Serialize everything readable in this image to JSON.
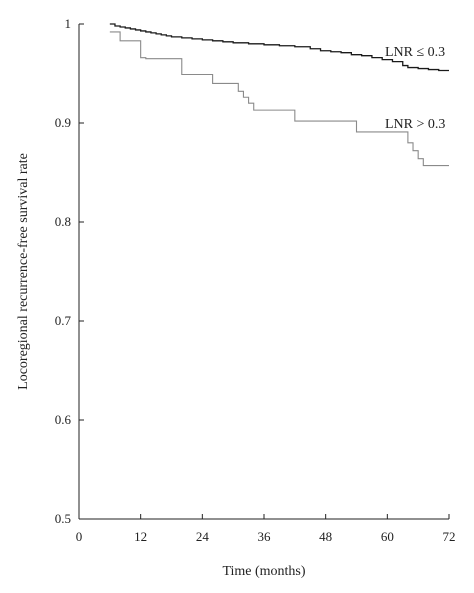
{
  "chart_data": {
    "type": "line",
    "title": "",
    "xlabel": "Time (months)",
    "ylabel": "Locoregional recurrence-free survival rate",
    "xlim": [
      0,
      72
    ],
    "ylim": [
      0.5,
      1.0
    ],
    "x_ticks": [
      0,
      12,
      24,
      36,
      48,
      60,
      72
    ],
    "x_tick_labels": [
      "0",
      "12",
      "24",
      "36",
      "48",
      "60",
      "72"
    ],
    "y_ticks": [
      0.5,
      0.6,
      0.7,
      0.8,
      0.9,
      1.0
    ],
    "y_tick_labels": [
      "0.5",
      "0.6",
      "0.7",
      "0.8",
      "0.9",
      "1"
    ],
    "grid": false,
    "legend": "none",
    "series": [
      {
        "name": "LNR ≤ 0.3",
        "color": "#1a1a1a",
        "step": true,
        "x": [
          6,
          7,
          8,
          9,
          10,
          11,
          12,
          13,
          14,
          15,
          16,
          17,
          18,
          20,
          22,
          24,
          26,
          28,
          30,
          33,
          36,
          39,
          42,
          45,
          47,
          49,
          51,
          53,
          55,
          57,
          59,
          61,
          63,
          64,
          66,
          68,
          70,
          72
        ],
        "y": [
          1.0,
          0.998,
          0.997,
          0.996,
          0.995,
          0.994,
          0.993,
          0.992,
          0.991,
          0.99,
          0.989,
          0.988,
          0.987,
          0.986,
          0.985,
          0.984,
          0.983,
          0.982,
          0.981,
          0.98,
          0.979,
          0.978,
          0.977,
          0.975,
          0.973,
          0.972,
          0.971,
          0.969,
          0.968,
          0.966,
          0.964,
          0.962,
          0.958,
          0.956,
          0.955,
          0.954,
          0.953,
          0.953
        ]
      },
      {
        "name": "LNR > 0.3",
        "color": "#8a8a8a",
        "step": true,
        "x": [
          6,
          8,
          12,
          13,
          20,
          26,
          31,
          32,
          33,
          34,
          42,
          54,
          64,
          65,
          66,
          67,
          72
        ],
        "y": [
          0.992,
          0.983,
          0.966,
          0.965,
          0.949,
          0.94,
          0.932,
          0.926,
          0.92,
          0.913,
          0.902,
          0.891,
          0.88,
          0.872,
          0.864,
          0.857,
          0.857
        ]
      }
    ]
  }
}
